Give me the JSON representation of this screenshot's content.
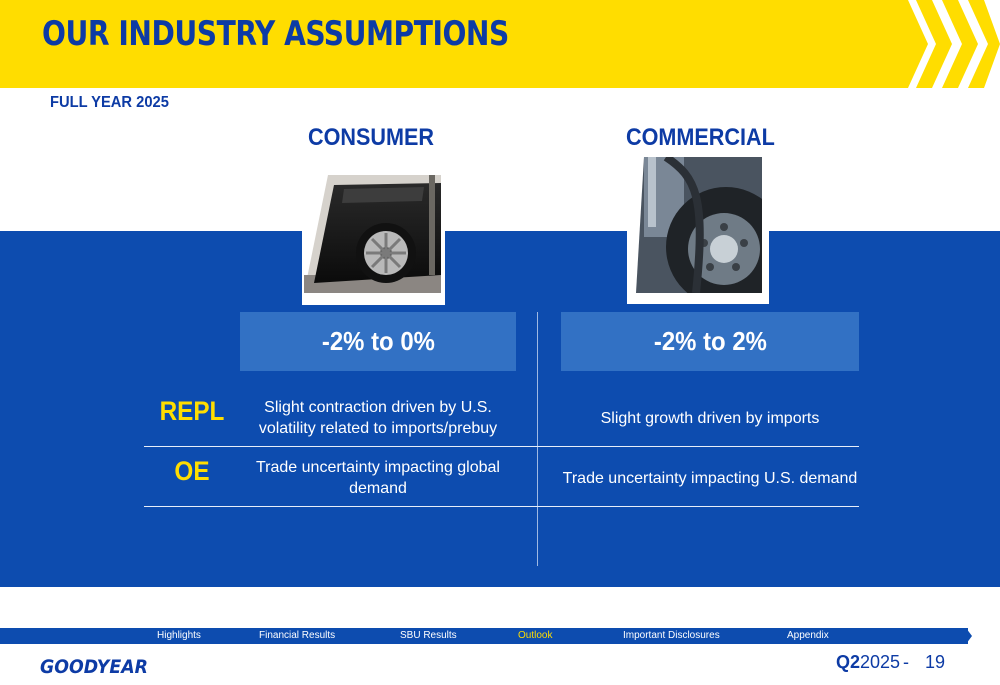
{
  "header": {
    "title": "OUR INDUSTRY ASSUMPTIONS",
    "subtitle": "FULL YEAR 2025"
  },
  "columns": [
    {
      "heading": "CONSUMER",
      "range": "-2% to 0%"
    },
    {
      "heading": "COMMERCIAL",
      "range": "-2% to 2%"
    }
  ],
  "rows": [
    {
      "label": "REPL",
      "consumer": "Slight contraction driven by U.S. volatility related to imports/prebuy",
      "commercial": "Slight growth driven by imports"
    },
    {
      "label": "OE",
      "consumer": "Trade uncertainty impacting global demand",
      "commercial": "Trade uncertainty impacting U.S. demand"
    }
  ],
  "nav": {
    "items": [
      {
        "label": "Highlights",
        "active": false
      },
      {
        "label": "Financial Results",
        "active": false
      },
      {
        "label": "SBU Results",
        "active": false
      },
      {
        "label": "Outlook",
        "active": true
      },
      {
        "label": "Important Disclosures",
        "active": false
      },
      {
        "label": "Appendix",
        "active": false
      }
    ]
  },
  "footer": {
    "logo_text": "GOODYEAR",
    "quarter": "Q2",
    "year": "2025",
    "separator": "-",
    "page": "19"
  },
  "colors": {
    "brand_yellow": "#FFDD00",
    "brand_blue": "#0D3BA5",
    "band_blue": "#0D4CAF",
    "box_blue": "#3271C4"
  }
}
